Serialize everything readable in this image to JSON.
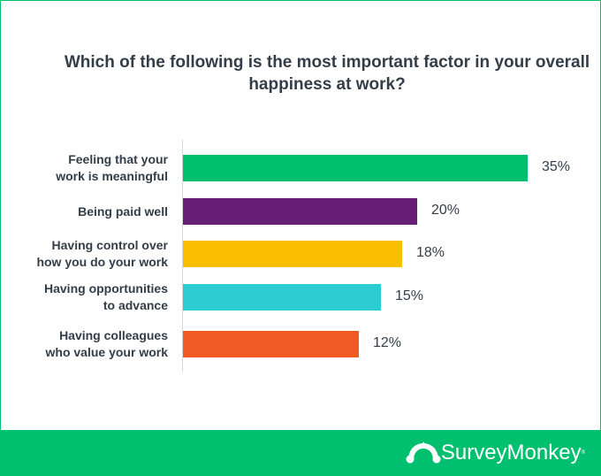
{
  "chart_data": {
    "type": "bar",
    "orientation": "horizontal",
    "title": "Which of the following is the most important factor in your overall happiness at work?",
    "categories": [
      [
        "Feeling that your",
        "work is meaningful"
      ],
      [
        "Being paid well"
      ],
      [
        "Having control over",
        "how you do your work"
      ],
      [
        "Having opportunities",
        "to advance"
      ],
      [
        "Having colleagues",
        "who value your work"
      ]
    ],
    "values": [
      35,
      20,
      18,
      15,
      12
    ],
    "value_labels": [
      "35%",
      "20%",
      "18%",
      "15%",
      "12%"
    ],
    "colors": [
      "#00BF6F",
      "#671E75",
      "#F9BE00",
      "#2DCCD3",
      "#F05B24"
    ],
    "grid": false,
    "legend": "none"
  },
  "footer": {
    "brand": "SurveyMonkey",
    "brand_color": "#00BF6F"
  }
}
